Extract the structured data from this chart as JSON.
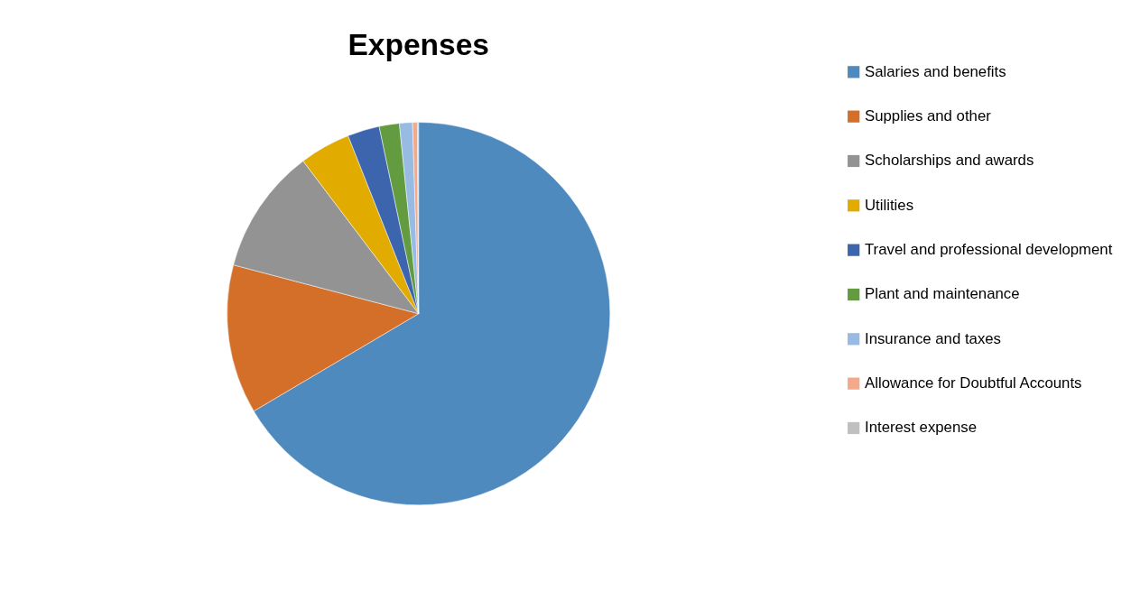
{
  "chart_data": {
    "type": "pie",
    "title": "Expenses",
    "categories": [
      "Salaries and benefits",
      "Supplies and other",
      "Scholarships and awards",
      "Utilities",
      "Travel and professional development",
      "Plant and maintenance",
      "Insurance and taxes",
      "Allowance for Doubtful Accounts",
      "Interest expense"
    ],
    "values": [
      66.5,
      12.6,
      10.6,
      4.3,
      2.7,
      1.7,
      1.1,
      0.4,
      0.1
    ],
    "colors": [
      "#4e8abe",
      "#d46f2a",
      "#939393",
      "#e2ab00",
      "#3d65ae",
      "#629b40",
      "#98bbe3",
      "#f3a98a",
      "#c0c0c0"
    ],
    "legend": "right"
  }
}
